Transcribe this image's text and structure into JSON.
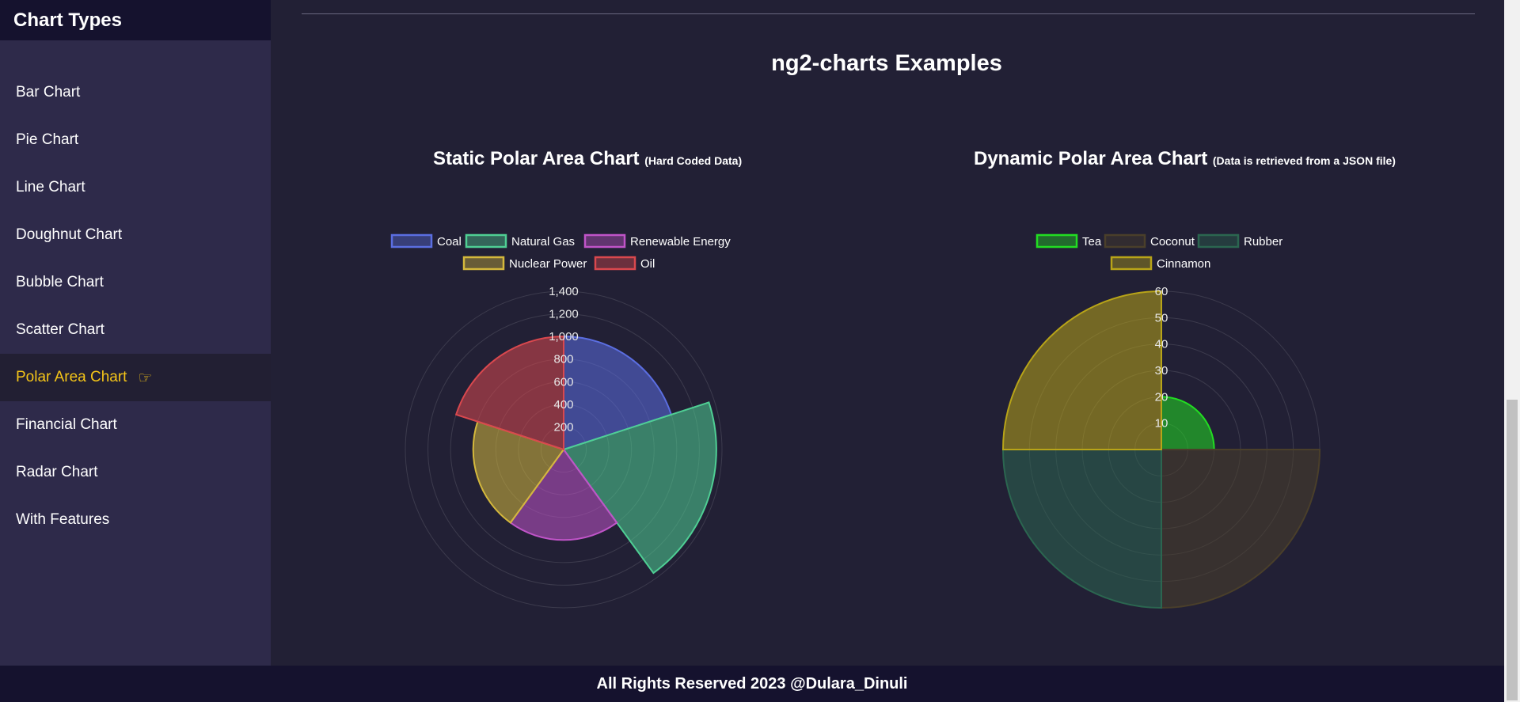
{
  "sidebar": {
    "title": "Chart Types",
    "items": [
      {
        "label": "Bar Chart",
        "active": false
      },
      {
        "label": "Pie Chart",
        "active": false
      },
      {
        "label": "Line Chart",
        "active": false
      },
      {
        "label": "Doughnut Chart",
        "active": false
      },
      {
        "label": "Bubble Chart",
        "active": false
      },
      {
        "label": "Scatter Chart",
        "active": false
      },
      {
        "label": "Polar Area Chart",
        "active": true,
        "icon": "pointing-hand-icon"
      },
      {
        "label": "Financial Chart",
        "active": false
      },
      {
        "label": "Radar Chart",
        "active": false
      },
      {
        "label": "With Features",
        "active": false
      }
    ],
    "active_color": "#f5c518"
  },
  "main": {
    "title": "ng2-charts Examples",
    "static_chart": {
      "title": "Static Polar Area Chart",
      "subtitle": "(Hard Coded Data)"
    },
    "dynamic_chart": {
      "title": "Dynamic Polar Area Chart",
      "subtitle": "(Data is retrieved from a JSON file)"
    }
  },
  "footer": {
    "text": "All Rights Reserved 2023 @Dulara_Dinuli"
  },
  "chart_data": [
    {
      "type": "polarArea",
      "labels": [
        "Coal",
        "Natural Gas",
        "Renewable Energy",
        "Nuclear Power",
        "Oil"
      ],
      "values": [
        1000,
        1350,
        800,
        800,
        1000
      ],
      "colors": [
        "#5b6ee1",
        "#4fcf94",
        "#c054c8",
        "#d4b83c",
        "#d9484e"
      ],
      "rlim": [
        0,
        1400
      ],
      "ticks": [
        "200",
        "400",
        "600",
        "800",
        "1,000",
        "1,200",
        "1,400"
      ],
      "tick_values": [
        200,
        400,
        600,
        800,
        1000,
        1200,
        1400
      ],
      "legend_position": "top"
    },
    {
      "type": "polarArea",
      "labels": [
        "Tea",
        "Coconut",
        "Rubber",
        "Cinnamon"
      ],
      "values": [
        20,
        60,
        60,
        60
      ],
      "colors": [
        "#22dd22",
        "#4a3f2a",
        "#2b6650",
        "#b8a418"
      ],
      "rlim": [
        0,
        60
      ],
      "ticks": [
        "10",
        "20",
        "30",
        "40",
        "50",
        "60"
      ],
      "tick_values": [
        10,
        20,
        30,
        40,
        50,
        60
      ],
      "legend_position": "top"
    }
  ]
}
